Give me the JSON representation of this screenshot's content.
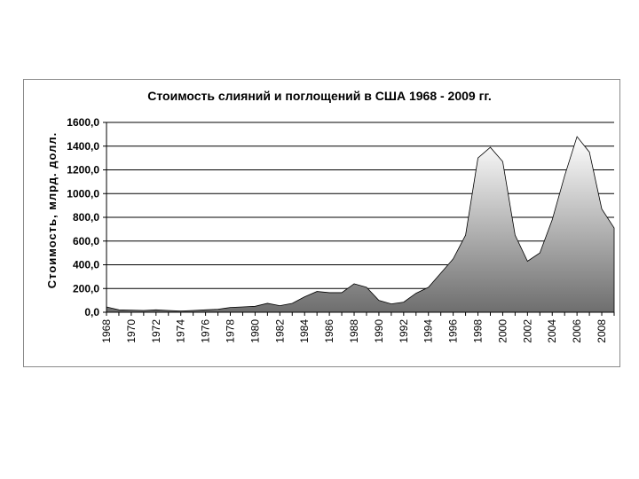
{
  "chart_data": {
    "type": "area",
    "title": "Стоимость слияний и поглощений в США 1968 - 2009 гг.",
    "xlabel": "",
    "ylabel": "Стоимость, млрд. долл.",
    "ylim": [
      0,
      1600
    ],
    "y_ticks": [
      "0,0",
      "200,0",
      "400,0",
      "600,0",
      "800,0",
      "1000,0",
      "1200,0",
      "1400,0",
      "1600,0"
    ],
    "x_ticks": [
      "1968",
      "1970",
      "1972",
      "1974",
      "1976",
      "1978",
      "1980",
      "1982",
      "1984",
      "1986",
      "1988",
      "1990",
      "1992",
      "1994",
      "1996",
      "1998",
      "2000",
      "2002",
      "2004",
      "2006",
      "2008"
    ],
    "grid": true,
    "legend": "none",
    "fill_gradient": [
      "#ffffff",
      "#6e6e6e"
    ],
    "series": [
      {
        "x": [
          1968,
          1969,
          1970,
          1971,
          1972,
          1973,
          1974,
          1975,
          1976,
          1977,
          1978,
          1979,
          1980,
          1981,
          1982,
          1983,
          1984,
          1985,
          1986,
          1987,
          1988,
          1989,
          1990,
          1991,
          1992,
          1993,
          1994,
          1995,
          1996,
          1997,
          1998,
          1999,
          2000,
          2001,
          2002,
          2003,
          2004,
          2005,
          2006,
          2007,
          2008,
          2009
        ],
        "values": [
          45,
          20,
          18,
          15,
          20,
          15,
          10,
          15,
          20,
          25,
          40,
          45,
          50,
          75,
          55,
          75,
          130,
          175,
          165,
          165,
          240,
          210,
          100,
          70,
          85,
          160,
          210,
          330,
          450,
          650,
          1300,
          1390,
          1270,
          650,
          430,
          500,
          780,
          1150,
          1480,
          1350,
          870,
          710
        ]
      }
    ]
  }
}
